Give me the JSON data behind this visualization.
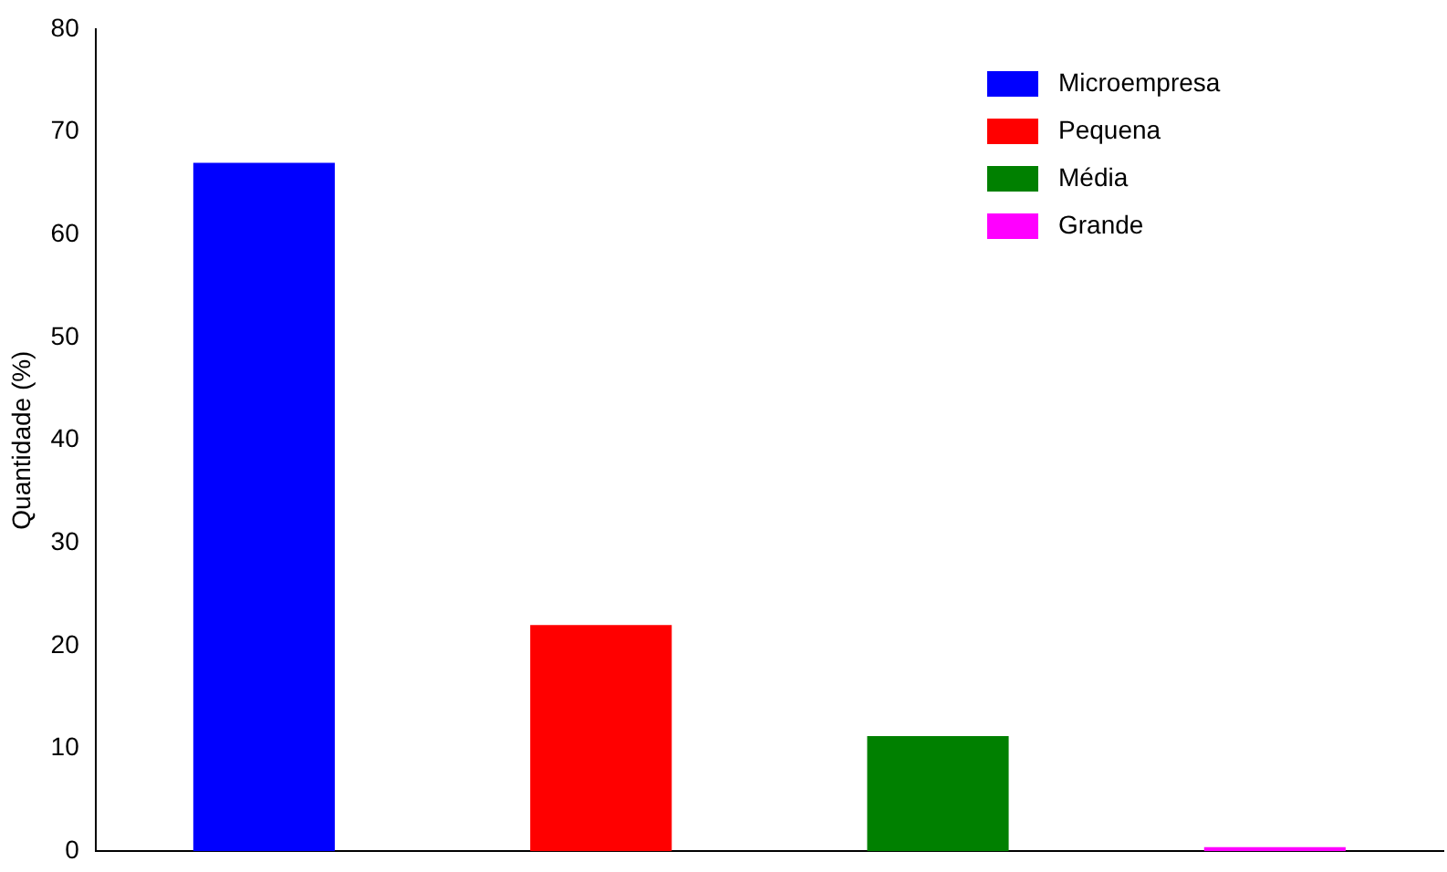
{
  "chart_data": {
    "type": "bar",
    "ylabel": "Quantidade (%)",
    "categories": [
      null,
      null,
      null,
      null
    ],
    "series": [
      {
        "name": "Microempresa",
        "color": "#0000ff",
        "values": [
          67,
          null,
          null,
          null
        ]
      },
      {
        "name": "Pequena",
        "color": "#ff0000",
        "values": [
          null,
          22,
          null,
          null
        ]
      },
      {
        "name": "Média",
        "color": "#008000",
        "values": [
          null,
          null,
          11.2,
          null
        ]
      },
      {
        "name": "Grande",
        "color": "#ff00ff",
        "values": [
          null,
          null,
          null,
          0.4
        ]
      }
    ],
    "ylim": [
      0,
      80
    ],
    "yticks": [
      0,
      10,
      20,
      30,
      40,
      50,
      60,
      70,
      80
    ],
    "grid": false,
    "legend": "top right",
    "tick_labels": "y"
  }
}
